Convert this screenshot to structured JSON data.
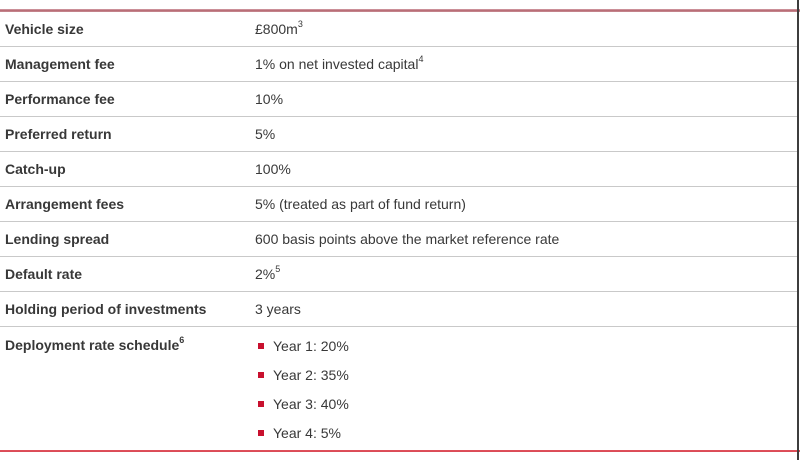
{
  "colors": {
    "top_rule": "#b56670",
    "bottom_rule": "#d94a55",
    "row_divider": "#c9c9c9",
    "right_edge": "#3d3d3d",
    "bullet_accent": "#c8102e",
    "text": "#383838"
  },
  "table": {
    "rows": [
      {
        "label": "Vehicle size",
        "value": "£800m",
        "value_sup": "3"
      },
      {
        "label": "Management fee",
        "value": "1% on net invested capital",
        "value_sup": "4"
      },
      {
        "label": "Performance fee",
        "value": "10%"
      },
      {
        "label": "Preferred return",
        "value": "5%"
      },
      {
        "label": "Catch-up",
        "value": "100%"
      },
      {
        "label": "Arrangement fees",
        "value": "5% (treated as part of fund return)"
      },
      {
        "label": "Lending spread",
        "value": "600 basis points above the market reference rate"
      },
      {
        "label": "Default rate",
        "value": "2%",
        "value_sup": "5"
      },
      {
        "label": "Holding period of investments",
        "value": "3 years"
      },
      {
        "label": "Deployment rate schedule",
        "label_sup": "6",
        "bullets": [
          "Year 1: 20%",
          "Year 2: 35%",
          "Year 3: 40%",
          "Year 4: 5%"
        ]
      }
    ]
  }
}
